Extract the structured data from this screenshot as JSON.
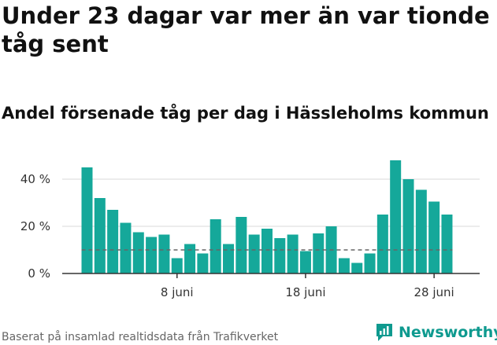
{
  "header": {
    "title": "Under 23 dagar var mer än var tionde tåg sent",
    "subtitle": "Andel försenade tåg per dag i Hässleholms kommun"
  },
  "footer": {
    "source": "Baserat på insamlad realtidsdata från Trafikverket",
    "brand": "Newsworthy",
    "brand_icon": "newsworthy-logo-icon"
  },
  "colors": {
    "bar": "#15a89a",
    "grid": "#d9d9d9",
    "axis": "#333333",
    "reference_line": "#666666",
    "brand": "#0f9a8f"
  },
  "chart_data": {
    "type": "bar",
    "x": [
      "1 juni",
      "2 juni",
      "3 juni",
      "4 juni",
      "5 juni",
      "6 juni",
      "7 juni",
      "8 juni",
      "9 juni",
      "10 juni",
      "11 juni",
      "12 juni",
      "13 juni",
      "14 juni",
      "15 juni",
      "16 juni",
      "17 juni",
      "18 juni",
      "19 juni",
      "20 juni",
      "21 juni",
      "22 juni",
      "23 juni",
      "24 juni",
      "25 juni",
      "26 juni",
      "27 juni",
      "28 juni",
      "29 juni"
    ],
    "values": [
      45,
      32,
      27,
      21.5,
      17.5,
      15.5,
      16.5,
      6.5,
      12.5,
      8.5,
      23,
      12.5,
      24,
      16.5,
      19,
      15,
      16.5,
      9.5,
      17,
      20,
      6.5,
      4.5,
      8.5,
      25,
      48,
      40,
      35.5,
      30.5,
      25
    ],
    "reference_line": 10,
    "y_ticks": [
      0,
      20,
      40
    ],
    "y_tick_labels": [
      "0 %",
      "20 %",
      "40 %"
    ],
    "x_tick_labels": [
      "8 juni",
      "18 juni",
      "28 juni"
    ],
    "ylim": [
      0,
      50
    ],
    "grid": true
  }
}
